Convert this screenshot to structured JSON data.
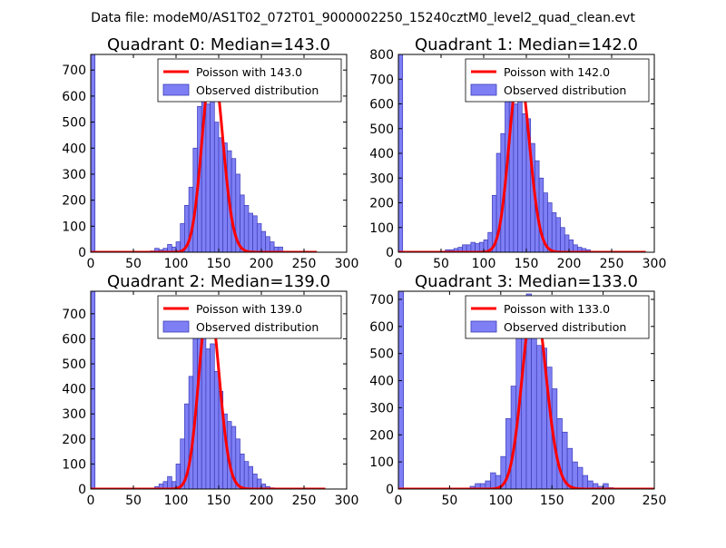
{
  "suptitle": "Data file: modeM0/AS1T02_072T01_9000002250_15240cztM0_level2_quad_clean.evt",
  "colors": {
    "hist_fill": "#7f7ff5",
    "hist_edge": "#3b3bb8",
    "poisson_line": "#ff0000",
    "background": "#ffffff"
  },
  "chart_data": [
    {
      "type": "bar",
      "title": "Quadrant 0: Median=143.0",
      "legend": {
        "line_label": "Poisson with 143.0",
        "hist_label": "Observed distribution",
        "placement": "top-right"
      },
      "xlim": [
        0,
        300
      ],
      "ylim": [
        0,
        760
      ],
      "xticks": [
        0,
        50,
        100,
        150,
        200,
        250,
        300
      ],
      "yticks": [
        0,
        100,
        200,
        300,
        400,
        500,
        600,
        700
      ],
      "bin_width": 5,
      "bin_starts": [
        0,
        70,
        75,
        80,
        85,
        90,
        95,
        100,
        105,
        110,
        115,
        120,
        125,
        130,
        135,
        140,
        145,
        150,
        155,
        160,
        165,
        170,
        175,
        180,
        185,
        190,
        195,
        200,
        205,
        210,
        215,
        220
      ],
      "counts": [
        760,
        5,
        15,
        10,
        15,
        30,
        20,
        40,
        110,
        180,
        250,
        400,
        560,
        630,
        570,
        600,
        500,
        440,
        420,
        390,
        360,
        300,
        220,
        180,
        150,
        140,
        110,
        80,
        60,
        40,
        20,
        20
      ],
      "poisson_mean": 143.0,
      "poisson_peak": 730,
      "poisson_range": [
        0,
        265
      ]
    },
    {
      "type": "bar",
      "title": "Quadrant 1: Median=142.0",
      "legend": {
        "line_label": "Poisson with 142.0",
        "hist_label": "Observed distribution",
        "placement": "top-right"
      },
      "xlim": [
        0,
        300
      ],
      "ylim": [
        0,
        800
      ],
      "xticks": [
        0,
        50,
        100,
        150,
        200,
        250,
        300
      ],
      "yticks": [
        0,
        100,
        200,
        300,
        400,
        500,
        600,
        700,
        800
      ],
      "bin_width": 5,
      "bin_starts": [
        0,
        55,
        60,
        65,
        70,
        75,
        80,
        85,
        90,
        95,
        100,
        105,
        110,
        115,
        120,
        125,
        130,
        135,
        140,
        145,
        150,
        155,
        160,
        165,
        170,
        175,
        180,
        185,
        190,
        195,
        200,
        205,
        210,
        215,
        220
      ],
      "counts": [
        800,
        10,
        10,
        15,
        20,
        30,
        30,
        40,
        35,
        40,
        50,
        80,
        230,
        400,
        480,
        650,
        690,
        600,
        620,
        560,
        540,
        440,
        370,
        300,
        240,
        200,
        160,
        140,
        100,
        70,
        50,
        30,
        20,
        15,
        10
      ],
      "poisson_mean": 142.0,
      "poisson_peak": 730,
      "poisson_range": [
        0,
        290
      ]
    },
    {
      "type": "bar",
      "title": "Quadrant 2: Median=139.0",
      "legend": {
        "line_label": "Poisson with 139.0",
        "hist_label": "Observed distribution",
        "placement": "top-right"
      },
      "xlim": [
        0,
        300
      ],
      "ylim": [
        0,
        790
      ],
      "xticks": [
        0,
        50,
        100,
        150,
        200,
        250,
        300
      ],
      "yticks": [
        0,
        100,
        200,
        300,
        400,
        500,
        600,
        700
      ],
      "bin_width": 5,
      "bin_starts": [
        0,
        75,
        80,
        85,
        90,
        95,
        100,
        105,
        110,
        115,
        120,
        125,
        130,
        135,
        140,
        145,
        150,
        155,
        160,
        165,
        170,
        175,
        180,
        185,
        190,
        195,
        200,
        205,
        210
      ],
      "counts": [
        790,
        10,
        20,
        30,
        50,
        30,
        100,
        200,
        340,
        450,
        680,
        740,
        720,
        560,
        580,
        470,
        390,
        300,
        270,
        250,
        200,
        140,
        110,
        90,
        60,
        40,
        20,
        10,
        5
      ],
      "poisson_mean": 139.0,
      "poisson_peak": 755,
      "poisson_range": [
        0,
        275
      ]
    },
    {
      "type": "bar",
      "title": "Quadrant 3: Median=133.0",
      "legend": {
        "line_label": "Poisson with 133.0",
        "hist_label": "Observed distribution",
        "placement": "top-right"
      },
      "xlim": [
        0,
        250
      ],
      "ylim": [
        0,
        730
      ],
      "xticks": [
        0,
        50,
        100,
        150,
        200,
        250
      ],
      "yticks": [
        0,
        100,
        200,
        300,
        400,
        500,
        600,
        700
      ],
      "bin_width": 5,
      "bin_starts": [
        0,
        70,
        75,
        80,
        85,
        90,
        95,
        100,
        105,
        110,
        115,
        120,
        125,
        130,
        135,
        140,
        145,
        150,
        155,
        160,
        165,
        170,
        175,
        180,
        185,
        190,
        195,
        200,
        205
      ],
      "counts": [
        730,
        10,
        20,
        20,
        30,
        60,
        50,
        120,
        260,
        380,
        620,
        700,
        720,
        710,
        530,
        520,
        450,
        370,
        260,
        210,
        150,
        100,
        80,
        50,
        30,
        20,
        10,
        20,
        5
      ],
      "poisson_mean": 133.0,
      "poisson_peak": 700,
      "poisson_range": [
        0,
        250
      ]
    }
  ]
}
